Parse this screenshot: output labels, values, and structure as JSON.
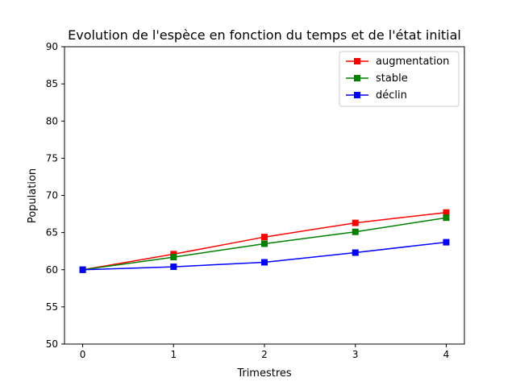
{
  "chart_data": {
    "type": "line",
    "title": "Evolution de l'espèce en fonction du temps et de l'état initial",
    "xlabel": "Trimestres",
    "ylabel": "Population",
    "x": [
      0,
      1,
      2,
      3,
      4
    ],
    "xticks": [
      "0",
      "1",
      "2",
      "3",
      "4"
    ],
    "ylim": [
      50,
      90
    ],
    "yticks": [
      "50",
      "55",
      "60",
      "65",
      "70",
      "75",
      "80",
      "85",
      "90"
    ],
    "grid": false,
    "legend_position": "top-right",
    "series": [
      {
        "name": "augmentation",
        "color": "#ff0000",
        "marker": "square",
        "values": [
          60,
          62.1,
          64.4,
          66.3,
          67.7
        ]
      },
      {
        "name": "stable",
        "color": "#008000",
        "marker": "square",
        "values": [
          60,
          61.7,
          63.5,
          65.1,
          67.0
        ]
      },
      {
        "name": "déclin",
        "color": "#0000ff",
        "marker": "square",
        "values": [
          60,
          60.4,
          61.0,
          62.3,
          63.7
        ]
      }
    ]
  }
}
